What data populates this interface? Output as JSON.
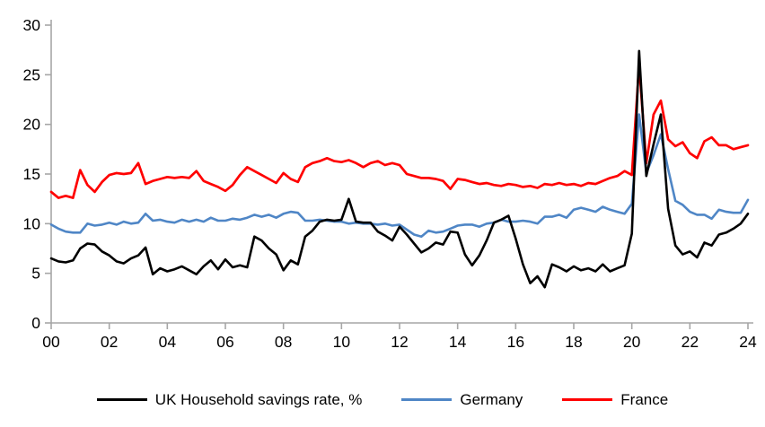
{
  "chart_data": {
    "type": "line",
    "title": "",
    "frequency": "quarterly",
    "x_start_year": 2000,
    "x_tick_labels": [
      "00",
      "02",
      "04",
      "06",
      "08",
      "10",
      "12",
      "14",
      "16",
      "18",
      "20",
      "22",
      "24"
    ],
    "y_ticks": [
      0,
      5,
      10,
      15,
      20,
      25,
      30
    ],
    "ylim": [
      0,
      30
    ],
    "grid": false,
    "legend_position": "bottom",
    "axis_color": "#a6a6a6",
    "series": [
      {
        "name": "Germany",
        "color": "#4f86c6",
        "width": 2.6,
        "values": [
          9.9,
          9.5,
          9.2,
          9.1,
          9.1,
          10.0,
          9.8,
          9.9,
          10.1,
          9.9,
          10.2,
          10.0,
          10.1,
          11.0,
          10.3,
          10.4,
          10.2,
          10.1,
          10.4,
          10.2,
          10.4,
          10.2,
          10.6,
          10.3,
          10.3,
          10.5,
          10.4,
          10.6,
          10.9,
          10.7,
          10.9,
          10.6,
          11.0,
          11.2,
          11.1,
          10.3,
          10.3,
          10.4,
          10.3,
          10.2,
          10.2,
          10.0,
          10.1,
          10.0,
          10.0,
          9.9,
          10.0,
          9.8,
          9.9,
          9.4,
          8.9,
          8.7,
          9.3,
          9.1,
          9.2,
          9.5,
          9.8,
          9.9,
          9.9,
          9.7,
          10.0,
          10.1,
          10.4,
          10.2,
          10.2,
          10.3,
          10.2,
          10.0,
          10.7,
          10.7,
          10.9,
          10.6,
          11.4,
          11.6,
          11.4,
          11.2,
          11.7,
          11.4,
          11.2,
          11.0,
          12.0,
          21.0,
          15.1,
          16.9,
          19.0,
          15.5,
          12.3,
          11.9,
          11.2,
          10.9,
          10.9,
          10.5,
          11.4,
          11.2,
          11.1,
          11.1,
          12.4
        ]
      },
      {
        "name": "France",
        "color": "#ff0000",
        "width": 2.7,
        "values": [
          13.2,
          12.6,
          12.8,
          12.6,
          15.4,
          13.9,
          13.2,
          14.2,
          14.9,
          15.1,
          15.0,
          15.1,
          16.1,
          14.0,
          14.3,
          14.5,
          14.7,
          14.6,
          14.7,
          14.6,
          15.3,
          14.3,
          14.0,
          13.7,
          13.3,
          13.9,
          14.9,
          15.7,
          15.3,
          14.9,
          14.5,
          14.1,
          15.1,
          14.5,
          14.2,
          15.7,
          16.1,
          16.3,
          16.6,
          16.3,
          16.2,
          16.4,
          16.1,
          15.7,
          16.1,
          16.3,
          15.9,
          16.1,
          15.9,
          15.0,
          14.8,
          14.6,
          14.6,
          14.5,
          14.3,
          13.5,
          14.5,
          14.4,
          14.2,
          14.0,
          14.1,
          13.9,
          13.8,
          14.0,
          13.9,
          13.7,
          13.8,
          13.6,
          14.0,
          13.9,
          14.1,
          13.9,
          14.0,
          13.8,
          14.1,
          14.0,
          14.3,
          14.6,
          14.8,
          15.3,
          14.9,
          26.0,
          16.1,
          21.0,
          22.4,
          18.5,
          17.8,
          18.2,
          17.1,
          16.6,
          18.3,
          18.7,
          17.9,
          17.9,
          17.5,
          17.7,
          17.9
        ]
      },
      {
        "name": "UK Household savings rate, %",
        "color": "#000000",
        "width": 2.6,
        "values": [
          6.5,
          6.2,
          6.1,
          6.3,
          7.5,
          8.0,
          7.9,
          7.2,
          6.8,
          6.2,
          6.0,
          6.5,
          6.8,
          7.6,
          4.9,
          5.5,
          5.2,
          5.4,
          5.7,
          5.3,
          4.9,
          5.7,
          6.3,
          5.4,
          6.4,
          5.6,
          5.8,
          5.6,
          8.7,
          8.3,
          7.5,
          6.9,
          5.3,
          6.3,
          5.9,
          8.7,
          9.3,
          10.2,
          10.4,
          10.3,
          10.4,
          12.5,
          10.2,
          10.1,
          10.1,
          9.2,
          8.8,
          8.3,
          9.7,
          8.9,
          8.0,
          7.1,
          7.5,
          8.1,
          7.9,
          9.2,
          9.1,
          6.9,
          5.8,
          6.8,
          8.3,
          10.1,
          10.4,
          10.8,
          8.5,
          5.9,
          4.0,
          4.7,
          3.6,
          5.9,
          5.6,
          5.2,
          5.7,
          5.3,
          5.5,
          5.2,
          5.9,
          5.2,
          5.5,
          5.8,
          9.0,
          27.4,
          14.8,
          18.0,
          21.0,
          11.5,
          7.8,
          6.9,
          7.2,
          6.6,
          8.1,
          7.8,
          8.9,
          9.1,
          9.5,
          10.0,
          11.0
        ]
      }
    ],
    "legend_order": [
      "UK Household savings rate, %",
      "Germany",
      "France"
    ]
  }
}
